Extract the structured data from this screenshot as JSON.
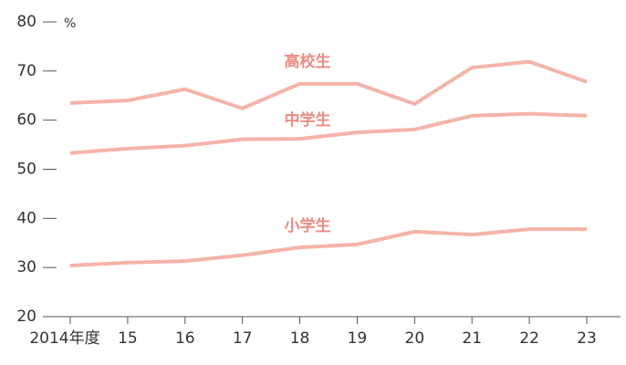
{
  "chart_data": {
    "type": "line",
    "y_label": "%",
    "categories": [
      "2014年度",
      "15",
      "16",
      "17",
      "18",
      "19",
      "20",
      "21",
      "22",
      "23"
    ],
    "series": [
      {
        "name": "高校生",
        "color": "#f4b4a8",
        "values": [
          63.5,
          64.0,
          66.3,
          62.4,
          67.4,
          67.4,
          63.3,
          70.7,
          71.9,
          67.8
        ]
      },
      {
        "name": "中学生",
        "color": "#f4b4a8",
        "values": [
          53.3,
          54.2,
          54.8,
          56.1,
          56.2,
          57.5,
          58.1,
          60.9,
          61.3,
          60.9
        ]
      },
      {
        "name": "小学生",
        "color": "#f4b4a8",
        "values": [
          30.4,
          31.0,
          31.3,
          32.5,
          34.1,
          34.7,
          37.3,
          36.7,
          37.8,
          37.8
        ]
      }
    ],
    "ylim": [
      20,
      80
    ],
    "yticks": [
      20,
      30,
      40,
      50,
      60,
      70,
      80
    ],
    "label_color": "#ee8b80",
    "axis_color": "#555555"
  }
}
